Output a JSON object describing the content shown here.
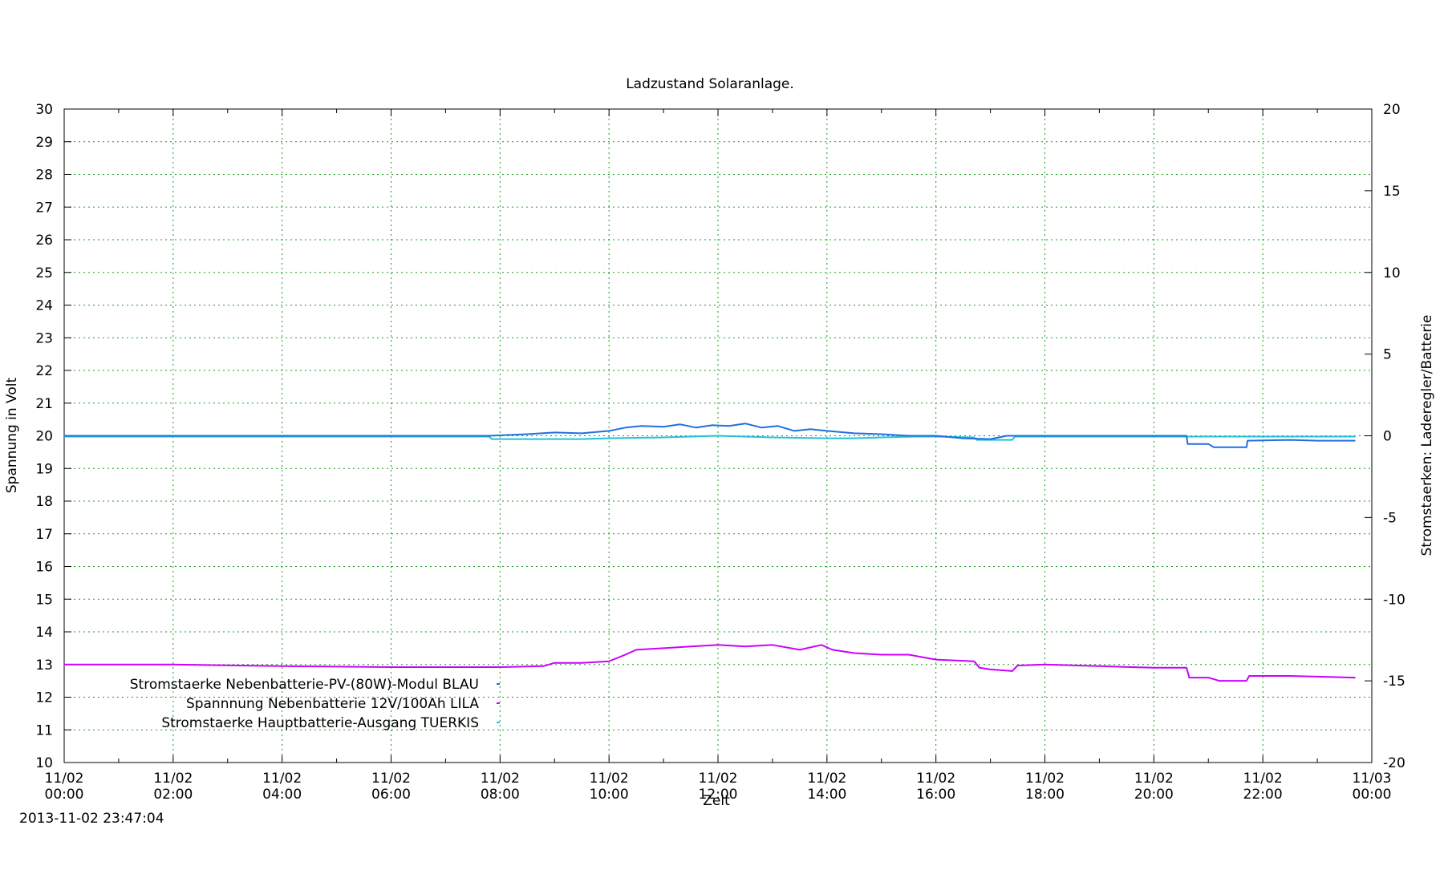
{
  "chart_data": {
    "type": "line",
    "title": "Ladzustand Solaranlage.",
    "xlabel": "Zeit",
    "ylabel": "Spannung in Volt",
    "y2label": "Stromstaerken: Laderegler/Batterie",
    "timestamp": "2013-11-02 23:47:04",
    "xlim": [
      0,
      24
    ],
    "ylim": [
      10,
      30
    ],
    "y2lim": [
      -20,
      20
    ],
    "x_ticks": [
      {
        "x": 0,
        "date": "11/02",
        "time": "00:00"
      },
      {
        "x": 2,
        "date": "11/02",
        "time": "02:00"
      },
      {
        "x": 4,
        "date": "11/02",
        "time": "04:00"
      },
      {
        "x": 6,
        "date": "11/02",
        "time": "06:00"
      },
      {
        "x": 8,
        "date": "11/02",
        "time": "08:00"
      },
      {
        "x": 10,
        "date": "11/02",
        "time": "10:00"
      },
      {
        "x": 12,
        "date": "11/02",
        "time": "12:00"
      },
      {
        "x": 14,
        "date": "11/02",
        "time": "14:00"
      },
      {
        "x": 16,
        "date": "11/02",
        "time": "16:00"
      },
      {
        "x": 18,
        "date": "11/02",
        "time": "18:00"
      },
      {
        "x": 20,
        "date": "11/02",
        "time": "20:00"
      },
      {
        "x": 22,
        "date": "11/02",
        "time": "22:00"
      },
      {
        "x": 24,
        "date": "11/03",
        "time": "00:00"
      }
    ],
    "y_ticks": [
      10,
      11,
      12,
      13,
      14,
      15,
      16,
      17,
      18,
      19,
      20,
      21,
      22,
      23,
      24,
      25,
      26,
      27,
      28,
      29,
      30
    ],
    "y2_ticks": [
      -20,
      -15,
      -10,
      -5,
      0,
      5,
      10,
      15,
      20
    ],
    "grid": true,
    "legend_position": "lower-left",
    "series": [
      {
        "name": "Stromstaerke Nebenbatterie-PV-(80W)-Modul BLAU",
        "axis": "y2",
        "color": "#1f6fe0",
        "x": [
          0,
          7.8,
          8.5,
          9.0,
          9.5,
          10.0,
          10.3,
          10.6,
          11.0,
          11.3,
          11.6,
          11.9,
          12.2,
          12.5,
          12.8,
          13.1,
          13.4,
          13.7,
          14.0,
          14.5,
          15.0,
          15.5,
          16.0,
          16.5,
          17.0,
          17.3,
          18.0,
          19.0,
          20.0,
          20.6,
          20.62,
          21.0,
          21.1,
          21.7,
          21.72,
          22.5,
          23.0,
          23.7
        ],
        "values": [
          0,
          0,
          0.1,
          0.2,
          0.15,
          0.3,
          0.5,
          0.6,
          0.55,
          0.7,
          0.5,
          0.65,
          0.6,
          0.75,
          0.5,
          0.6,
          0.3,
          0.4,
          0.3,
          0.15,
          0.1,
          0,
          0,
          -0.15,
          -0.2,
          0,
          0,
          0,
          0,
          0,
          -0.5,
          -0.5,
          -0.7,
          -0.7,
          -0.3,
          -0.25,
          -0.3,
          -0.3
        ]
      },
      {
        "name": "Spannnung Nebenbatterie 12V/100Ah LILA",
        "axis": "y",
        "color": "#cc00ff",
        "x": [
          0,
          2,
          4,
          6,
          8,
          8.8,
          9.0,
          9.5,
          10.0,
          10.3,
          10.5,
          11.0,
          11.5,
          12.0,
          12.5,
          13.0,
          13.5,
          13.9,
          14.1,
          14.5,
          15.0,
          15.5,
          16.0,
          16.7,
          16.8,
          17.0,
          17.4,
          17.5,
          18.0,
          19.0,
          20.0,
          20.6,
          20.65,
          21.0,
          21.2,
          21.7,
          21.75,
          22.5,
          23.7
        ],
        "values": [
          13.0,
          13.0,
          12.95,
          12.92,
          12.92,
          12.95,
          13.05,
          13.05,
          13.1,
          13.3,
          13.45,
          13.5,
          13.55,
          13.6,
          13.55,
          13.6,
          13.45,
          13.6,
          13.45,
          13.35,
          13.3,
          13.3,
          13.15,
          13.1,
          12.9,
          12.85,
          12.8,
          12.97,
          13.0,
          12.95,
          12.9,
          12.9,
          12.6,
          12.6,
          12.5,
          12.5,
          12.65,
          12.65,
          12.6
        ]
      },
      {
        "name": "Stromstaerke Hauptbatterie-Ausgang TUERKIS",
        "axis": "y2",
        "color": "#22c0d8",
        "x": [
          0,
          7.8,
          7.85,
          9.5,
          10.0,
          11.0,
          12.0,
          13.0,
          14.0,
          14.5,
          15.0,
          15.6,
          16.0,
          16.7,
          16.75,
          17.4,
          17.45,
          18.0,
          20.0,
          21.0,
          22.0,
          23.7
        ],
        "values": [
          -0.05,
          -0.05,
          -0.2,
          -0.2,
          -0.15,
          -0.1,
          0,
          -0.1,
          -0.15,
          -0.15,
          -0.1,
          -0.05,
          -0.05,
          -0.1,
          -0.25,
          -0.25,
          -0.05,
          -0.05,
          -0.05,
          -0.05,
          -0.05,
          -0.05
        ]
      }
    ]
  }
}
